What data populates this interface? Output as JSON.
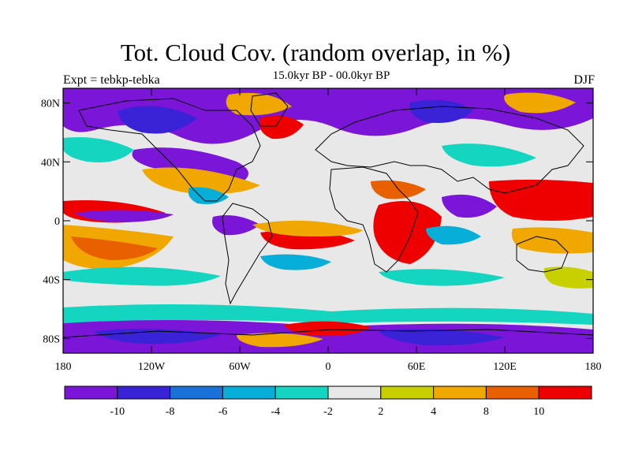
{
  "title": "Tot. Cloud Cov. (random overlap, in %)",
  "subtitle": "15.0kyr BP - 00.0kyr BP",
  "experiment": "Expt = tebkp-tebka",
  "season": "DJF",
  "map": {
    "projection": "cylindrical-equidistant",
    "lon_range": [
      -180,
      180
    ],
    "lat_range": [
      -90,
      90
    ],
    "lat_ticks": [
      {
        "value": 80,
        "label": "80N"
      },
      {
        "value": 40,
        "label": "40N"
      },
      {
        "value": 0,
        "label": "0"
      },
      {
        "value": -40,
        "label": "40S"
      },
      {
        "value": -80,
        "label": "80S"
      }
    ],
    "lon_ticks": [
      {
        "value": -180,
        "label": "180"
      },
      {
        "value": -120,
        "label": "120W"
      },
      {
        "value": -60,
        "label": "60W"
      },
      {
        "value": 0,
        "label": "0"
      },
      {
        "value": 60,
        "label": "60E"
      },
      {
        "value": 120,
        "label": "120E"
      },
      {
        "value": 180,
        "label": "180"
      }
    ]
  },
  "colorbar": {
    "colors": [
      "#7b16d8",
      "#3a23d6",
      "#1a72d8",
      "#07aed8",
      "#14d6c0",
      "#e8e8e8",
      "#c8d000",
      "#f0a800",
      "#e86000",
      "#ee0000"
    ],
    "labels": [
      "-10",
      "-8",
      "-6",
      "-4",
      "-2",
      "2",
      "4",
      "8",
      "10"
    ],
    "background": "#e8e8e8"
  }
}
